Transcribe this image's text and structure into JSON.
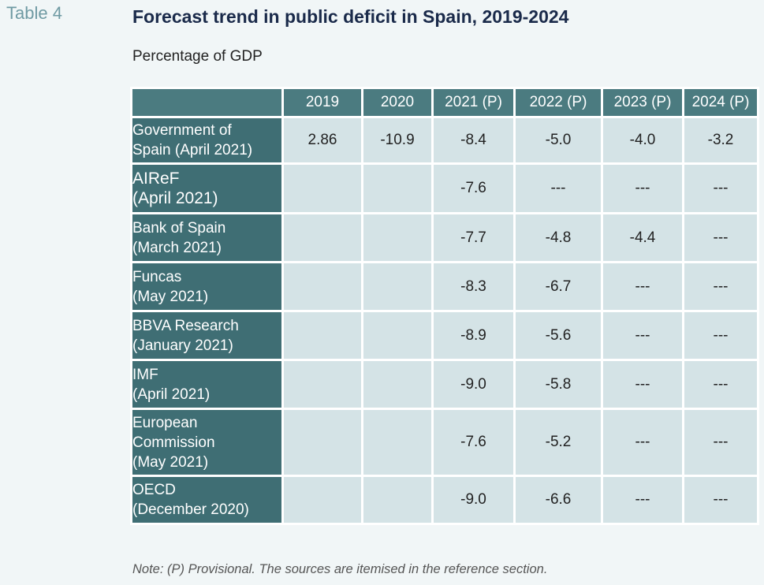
{
  "table_label": "Table 4",
  "title": "Forecast trend in public deficit in Spain, 2019-2024",
  "subtitle": "Percentage of GDP",
  "columns": [
    "2019",
    "2020",
    "2021 (P)",
    "2022 (P)",
    "2023 (P)",
    "2024 (P)"
  ],
  "rows": [
    {
      "label": "Government of\nSpain (April 2021)",
      "values": [
        "2.86",
        "-10.9",
        "-8.4",
        "-5.0",
        "-4.0",
        "-3.2"
      ]
    },
    {
      "label": "AIReF\n(April 2021)",
      "values": [
        "",
        "",
        "-7.6",
        "---",
        "---",
        "---"
      ]
    },
    {
      "label": "Bank of Spain\n(March 2021)",
      "values": [
        "",
        "",
        "-7.7",
        "-4.8",
        "-4.4",
        "---"
      ]
    },
    {
      "label": "Funcas\n(May 2021)",
      "values": [
        "",
        "",
        "-8.3",
        "-6.7",
        "---",
        "---"
      ]
    },
    {
      "label": "BBVA Research\n(January 2021)",
      "values": [
        "",
        "",
        "-8.9",
        "-5.6",
        "---",
        "---"
      ]
    },
    {
      "label": "IMF\n(April 2021)",
      "values": [
        "",
        "",
        "-9.0",
        "-5.8",
        "---",
        "---"
      ]
    },
    {
      "label": "European\nCommission\n(May 2021)",
      "values": [
        "",
        "",
        "-7.6",
        "-5.2",
        "---",
        "---"
      ]
    },
    {
      "label": "OECD\n(December 2020)",
      "values": [
        "",
        "",
        "-9.0",
        "-6.6",
        "---",
        "---"
      ]
    }
  ],
  "note": "Note: (P) Provisional. The sources are itemised in the reference section."
}
